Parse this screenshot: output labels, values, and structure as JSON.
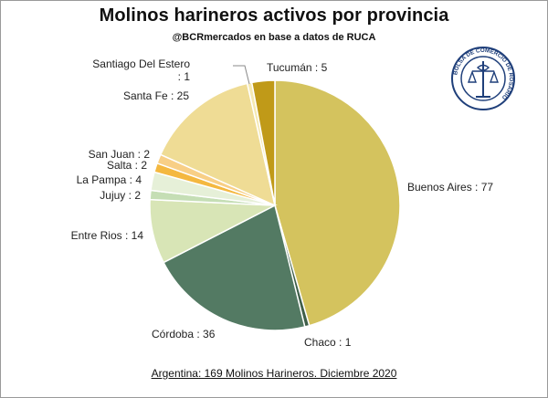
{
  "header": {
    "title": "Molinos harineros activos por provincia",
    "subtitle": "@BCRmercados en base a datos de RUCA"
  },
  "footer": {
    "note": "Argentina: 169 Molinos Harineros. Diciembre 2020"
  },
  "logo": {
    "text": "BOLSA DE COMERCIO DE ROSARIO"
  },
  "chart_data": {
    "type": "pie",
    "title": "Molinos harineros activos por provincia",
    "start": "12 o'clock",
    "direction": "clockwise",
    "slices": [
      {
        "label": "Buenos Aires",
        "value": 77,
        "color": "#d4c35e",
        "text": "Buenos Aires : 77"
      },
      {
        "label": "Chaco",
        "value": 1,
        "color": "#3f5f49",
        "text": "Chaco : 1"
      },
      {
        "label": "Córdoba",
        "value": 36,
        "color": "#537a63",
        "text": "Córdoba : 36"
      },
      {
        "label": "Entre Rios",
        "value": 14,
        "color": "#d8e5b6",
        "text": "Entre Rios : 14"
      },
      {
        "label": "Jujuy",
        "value": 2,
        "color": "#c5deb5",
        "text": "Jujuy : 2"
      },
      {
        "label": "La Pampa",
        "value": 4,
        "color": "#e6f0d8",
        "text": "La Pampa : 4"
      },
      {
        "label": "Salta",
        "value": 2,
        "color": "#f4b840",
        "text": "Salta : 2"
      },
      {
        "label": "San Juan",
        "value": 2,
        "color": "#f8cf86",
        "text": "San Juan : 2"
      },
      {
        "label": "Santa Fe",
        "value": 25,
        "color": "#efdc95",
        "text": "Santa Fe : 25"
      },
      {
        "label": "Santiago Del Estero",
        "value": 1,
        "color": "#f5e9b2",
        "text": "Santiago Del Estero\n: 1"
      },
      {
        "label": "Tucumán",
        "value": 5,
        "color": "#c09a18",
        "text": "Tucumán : 5"
      }
    ]
  }
}
